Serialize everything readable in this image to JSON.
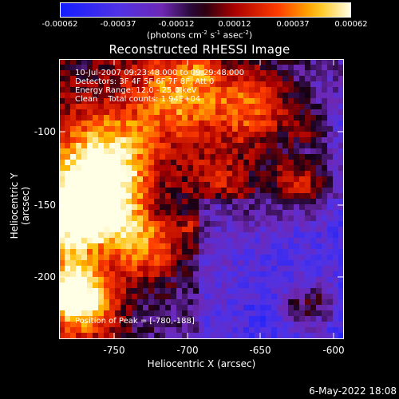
{
  "colorbar": {
    "ticks": [
      "-0.00062",
      "-0.00037",
      "-0.00012",
      "0.00012",
      "0.00037",
      "0.00062"
    ],
    "units_text": "(photons cm",
    "units_exp1": "-2",
    "units_mid1": " s",
    "units_exp2": "-1",
    "units_mid2": " asec",
    "units_exp3": "-2",
    "units_end": ")"
  },
  "title": "Reconstructed RHESSI Image",
  "info": {
    "time": "10-Jul-2007 09:23:48.000 to 09:29:48.000",
    "detectors": "Detectors: 3F 4F 5F 6F 7F 8F, Att 0",
    "energy": "Energy Range: 12.0 - 25.0 keV",
    "clean": "Clean    Total counts: 1.94E+04",
    "peak": "Position of Peak = [-780,-188]"
  },
  "axes": {
    "ylabel": "Heliocentric Y (arcsec)",
    "xlabel": "Heliocentric X (arcsec)",
    "yticks": [
      "-100",
      "-150",
      "-200"
    ],
    "xticks": [
      "-750",
      "-700",
      "-650",
      "-600"
    ]
  },
  "footer": "6-May-2022 18:08",
  "chart_data": {
    "type": "heatmap",
    "title": "Reconstructed RHESSI Image",
    "xlabel": "Heliocentric X (arcsec)",
    "ylabel": "Heliocentric Y (arcsec)",
    "xlim": [
      -787,
      -590
    ],
    "ylim": [
      -244,
      -58
    ],
    "colorbar_range": [
      -0.00062,
      0.00062
    ],
    "colormap": "blue-purple-red-yellow-white",
    "peak_position": [
      -780,
      -188
    ]
  }
}
